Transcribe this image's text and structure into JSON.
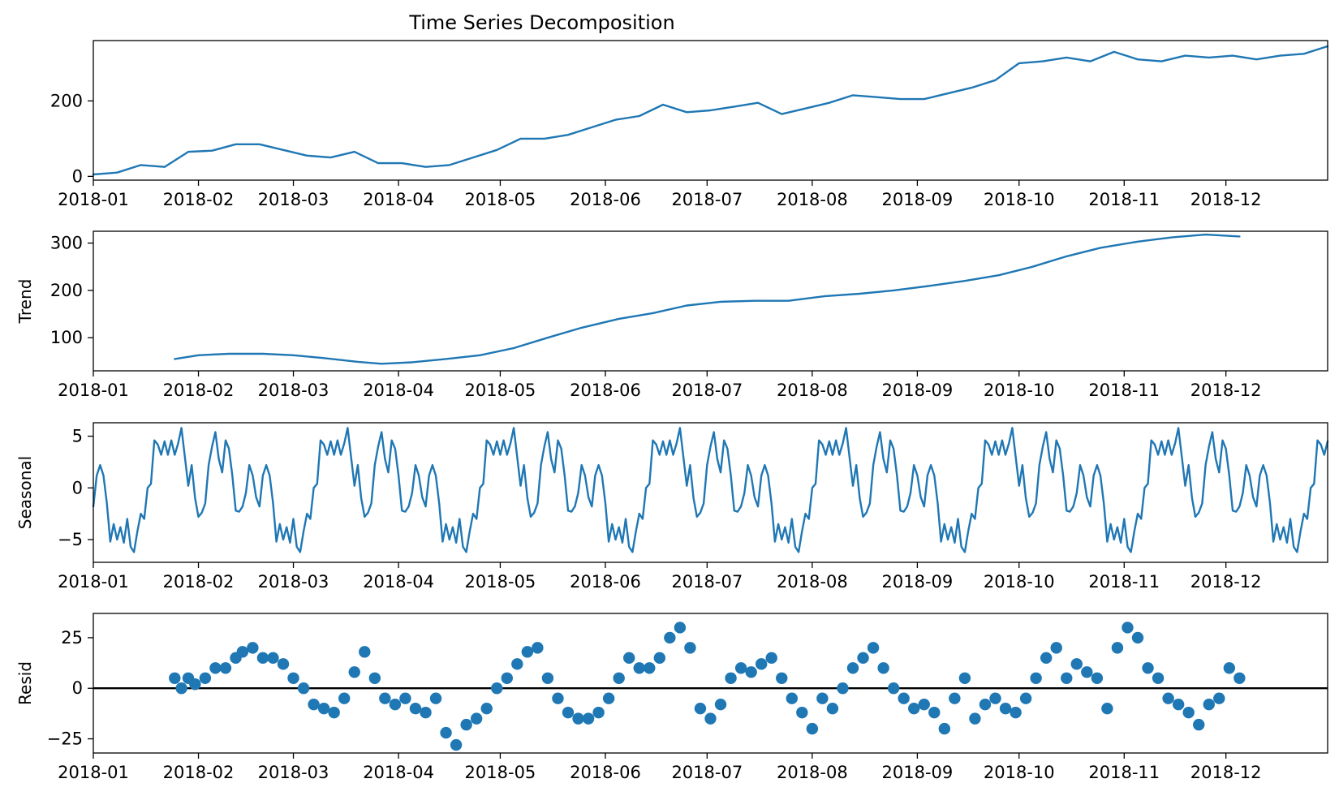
{
  "chart_data": {
    "type": "line",
    "title": "Time Series Decomposition",
    "colors": {
      "series": "#1f77b4",
      "axes": "#000000",
      "zero_line": "#000000"
    },
    "x_axis": {
      "start": "2018-01-01",
      "end": "2018-12-31",
      "ticks": [
        {
          "date": "2018-01-01",
          "label": "2018-01"
        },
        {
          "date": "2018-02-01",
          "label": "2018-02"
        },
        {
          "date": "2018-03-01",
          "label": "2018-03"
        },
        {
          "date": "2018-04-01",
          "label": "2018-04"
        },
        {
          "date": "2018-05-01",
          "label": "2018-05"
        },
        {
          "date": "2018-06-01",
          "label": "2018-06"
        },
        {
          "date": "2018-07-01",
          "label": "2018-07"
        },
        {
          "date": "2018-08-01",
          "label": "2018-08"
        },
        {
          "date": "2018-09-01",
          "label": "2018-09"
        },
        {
          "date": "2018-10-01",
          "label": "2018-10"
        },
        {
          "date": "2018-11-01",
          "label": "2018-11"
        },
        {
          "date": "2018-12-01",
          "label": "2018-12"
        }
      ]
    },
    "panels": [
      {
        "id": "observed",
        "ylabel": "",
        "ylim": [
          -10,
          360
        ],
        "yticks": [
          0,
          200
        ],
        "ytick_labels": [
          "0",
          "200"
        ],
        "style": "line",
        "x": [
          "2018-01-01",
          "2018-01-08",
          "2018-01-15",
          "2018-01-22",
          "2018-01-29",
          "2018-02-05",
          "2018-02-12",
          "2018-02-19",
          "2018-02-26",
          "2018-03-05",
          "2018-03-12",
          "2018-03-19",
          "2018-03-26",
          "2018-04-02",
          "2018-04-09",
          "2018-04-16",
          "2018-04-23",
          "2018-04-30",
          "2018-05-07",
          "2018-05-14",
          "2018-05-21",
          "2018-05-28",
          "2018-06-04",
          "2018-06-11",
          "2018-06-18",
          "2018-06-25",
          "2018-07-02",
          "2018-07-09",
          "2018-07-16",
          "2018-07-23",
          "2018-07-30",
          "2018-08-06",
          "2018-08-13",
          "2018-08-20",
          "2018-08-27",
          "2018-09-03",
          "2018-09-10",
          "2018-09-17",
          "2018-09-24",
          "2018-10-01",
          "2018-10-08",
          "2018-10-15",
          "2018-10-22",
          "2018-10-29",
          "2018-11-05",
          "2018-11-12",
          "2018-11-19",
          "2018-11-26",
          "2018-12-03",
          "2018-12-10",
          "2018-12-17",
          "2018-12-24",
          "2018-12-31"
        ],
        "values": [
          5,
          10,
          30,
          25,
          65,
          68,
          85,
          85,
          70,
          55,
          50,
          65,
          35,
          35,
          25,
          30,
          50,
          70,
          100,
          100,
          110,
          130,
          150,
          160,
          190,
          170,
          175,
          185,
          195,
          165,
          180,
          195,
          215,
          210,
          205,
          205,
          220,
          235,
          255,
          300,
          305,
          315,
          305,
          330,
          310,
          305,
          320,
          315,
          320,
          310,
          320,
          325,
          345
        ]
      },
      {
        "id": "trend",
        "ylabel": "Trend",
        "ylim": [
          30,
          325
        ],
        "yticks": [
          100,
          200,
          300
        ],
        "ytick_labels": [
          "100",
          "200",
          "300"
        ],
        "style": "line",
        "x": [
          "2018-01-25",
          "2018-02-01",
          "2018-02-10",
          "2018-02-20",
          "2018-03-01",
          "2018-03-10",
          "2018-03-20",
          "2018-03-27",
          "2018-04-05",
          "2018-04-15",
          "2018-04-25",
          "2018-05-05",
          "2018-05-15",
          "2018-05-25",
          "2018-06-05",
          "2018-06-15",
          "2018-06-25",
          "2018-07-05",
          "2018-07-15",
          "2018-07-25",
          "2018-08-05",
          "2018-08-15",
          "2018-08-25",
          "2018-09-05",
          "2018-09-15",
          "2018-09-25",
          "2018-10-05",
          "2018-10-15",
          "2018-10-25",
          "2018-11-05",
          "2018-11-15",
          "2018-11-25",
          "2018-12-05"
        ],
        "values": [
          55,
          63,
          66,
          66,
          63,
          57,
          49,
          45,
          48,
          55,
          63,
          78,
          100,
          121,
          140,
          152,
          168,
          176,
          178,
          178,
          188,
          193,
          200,
          210,
          220,
          232,
          250,
          272,
          290,
          303,
          312,
          318,
          314
        ]
      },
      {
        "id": "seasonal",
        "ylabel": "Seasonal",
        "ylim": [
          -7.2,
          6.3
        ],
        "yticks": [
          -5,
          0,
          5
        ],
        "ytick_labels": [
          "−5",
          "0",
          "5"
        ],
        "style": "line",
        "period_days": 49,
        "pattern": [
          -1.8,
          1.2,
          2.2,
          1.2,
          -1.5,
          -5.2,
          -3.5,
          -5.0,
          -3.8,
          -5.3,
          -3.0,
          -5.7,
          -6.2,
          -4.2,
          -2.5,
          -3.0,
          0.0,
          0.4,
          4.6,
          4.2,
          3.2,
          4.5,
          3.2,
          4.6,
          3.2,
          4.3,
          5.8,
          3.0,
          0.2,
          2.2,
          -1.0,
          -2.8,
          -2.4,
          -1.5,
          2.2,
          4.0,
          5.4,
          2.8,
          1.5,
          4.6,
          3.8,
          1.2,
          -2.2,
          -2.3,
          -1.8,
          -0.5,
          2.2,
          1.2,
          -0.9
        ]
      },
      {
        "id": "resid",
        "ylabel": "Resid",
        "ylim": [
          -32,
          37
        ],
        "yticks": [
          -25,
          0,
          25
        ],
        "ytick_labels": [
          "−25",
          "0",
          "25"
        ],
        "style": "scatter",
        "zero_line": true,
        "x": [
          "2018-01-25",
          "2018-01-27",
          "2018-01-29",
          "2018-01-31",
          "2018-02-03",
          "2018-02-06",
          "2018-02-09",
          "2018-02-12",
          "2018-02-14",
          "2018-02-17",
          "2018-02-20",
          "2018-02-23",
          "2018-02-26",
          "2018-03-01",
          "2018-03-04",
          "2018-03-07",
          "2018-03-10",
          "2018-03-13",
          "2018-03-16",
          "2018-03-19",
          "2018-03-22",
          "2018-03-25",
          "2018-03-28",
          "2018-03-31",
          "2018-04-03",
          "2018-04-06",
          "2018-04-09",
          "2018-04-12",
          "2018-04-15",
          "2018-04-18",
          "2018-04-21",
          "2018-04-24",
          "2018-04-27",
          "2018-04-30",
          "2018-05-03",
          "2018-05-06",
          "2018-05-09",
          "2018-05-12",
          "2018-05-15",
          "2018-05-18",
          "2018-05-21",
          "2018-05-24",
          "2018-05-27",
          "2018-05-30",
          "2018-06-02",
          "2018-06-05",
          "2018-06-08",
          "2018-06-11",
          "2018-06-14",
          "2018-06-17",
          "2018-06-20",
          "2018-06-23",
          "2018-06-26",
          "2018-06-29",
          "2018-07-02",
          "2018-07-05",
          "2018-07-08",
          "2018-07-11",
          "2018-07-14",
          "2018-07-17",
          "2018-07-20",
          "2018-07-23",
          "2018-07-26",
          "2018-07-29",
          "2018-08-01",
          "2018-08-04",
          "2018-08-07",
          "2018-08-10",
          "2018-08-13",
          "2018-08-16",
          "2018-08-19",
          "2018-08-22",
          "2018-08-25",
          "2018-08-28",
          "2018-08-31",
          "2018-09-03",
          "2018-09-06",
          "2018-09-09",
          "2018-09-12",
          "2018-09-15",
          "2018-09-18",
          "2018-09-21",
          "2018-09-24",
          "2018-09-27",
          "2018-09-30",
          "2018-10-03",
          "2018-10-06",
          "2018-10-09",
          "2018-10-12",
          "2018-10-15",
          "2018-10-18",
          "2018-10-21",
          "2018-10-24",
          "2018-10-27",
          "2018-10-30",
          "2018-11-02",
          "2018-11-05",
          "2018-11-08",
          "2018-11-11",
          "2018-11-14",
          "2018-11-17",
          "2018-11-20",
          "2018-11-23",
          "2018-11-26",
          "2018-11-29",
          "2018-12-02",
          "2018-12-05"
        ],
        "values": [
          5,
          0,
          5,
          2,
          5,
          10,
          10,
          15,
          18,
          20,
          15,
          15,
          12,
          5,
          0,
          -8,
          -10,
          -12,
          -5,
          8,
          18,
          5,
          -5,
          -8,
          -5,
          -10,
          -12,
          -5,
          -22,
          -28,
          -18,
          -15,
          -10,
          0,
          5,
          12,
          18,
          20,
          5,
          -5,
          -12,
          -15,
          -15,
          -12,
          -5,
          5,
          15,
          10,
          10,
          15,
          25,
          30,
          20,
          -10,
          -15,
          -8,
          5,
          10,
          8,
          12,
          15,
          5,
          -5,
          -12,
          -20,
          -5,
          -10,
          0,
          10,
          15,
          20,
          10,
          0,
          -5,
          -10,
          -8,
          -12,
          -20,
          -5,
          5,
          -15,
          -8,
          -5,
          -10,
          -12,
          -5,
          5,
          15,
          20,
          5,
          12,
          8,
          5,
          -10,
          20,
          30,
          25,
          10,
          5,
          -5,
          -8,
          -12,
          -18,
          -8,
          -5,
          10,
          5
        ]
      }
    ]
  }
}
